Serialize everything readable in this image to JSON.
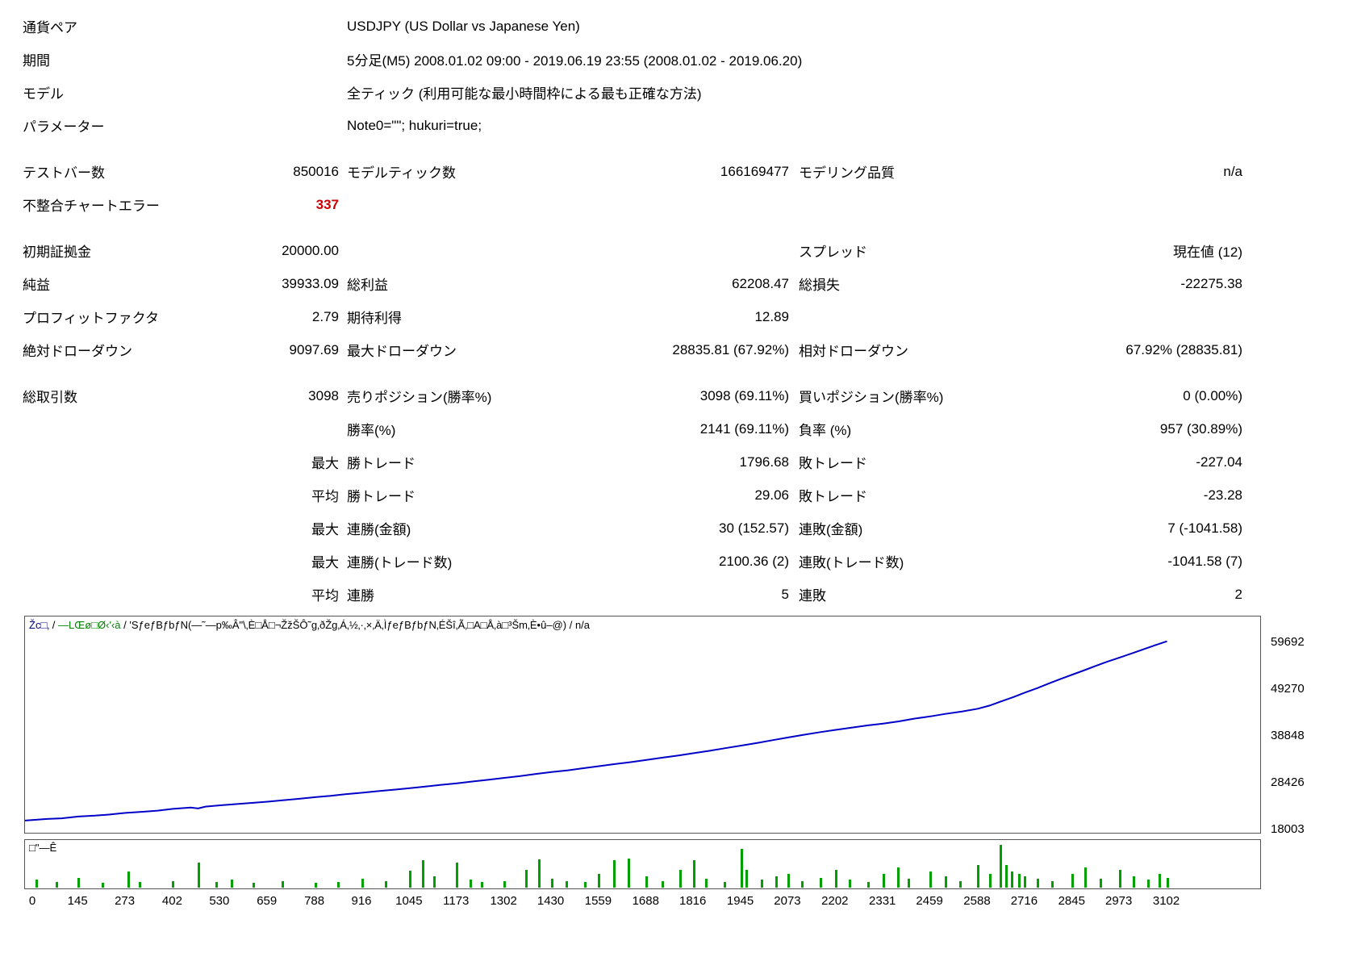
{
  "header": {
    "rows": [
      {
        "label": "通貨ペア",
        "value": "USDJPY (US Dollar vs Japanese Yen)"
      },
      {
        "label": "期間",
        "value": "5分足(M5) 2008.01.02 09:00 - 2019.06.19 23:55 (2008.01.02 - 2019.06.20)"
      },
      {
        "label": "モデル",
        "value": "全ティック (利用可能な最小時間枠による最も正確な方法)"
      },
      {
        "label": "パラメーター",
        "value": "Note0=\"\"; hukuri=true;"
      }
    ]
  },
  "sections": {
    "testing": {
      "rows": [
        {
          "c0": "テストバー数",
          "c1": "850016",
          "c2": "モデルティック数",
          "c3": "166169477",
          "c4": "モデリング品質",
          "c5": "n/a"
        },
        {
          "c0": "不整合チャートエラー",
          "c1": "337",
          "c2": "",
          "c3": "",
          "c4": "",
          "c5": "",
          "styles": {
            "c1": "err"
          }
        }
      ]
    },
    "results": {
      "rows": [
        {
          "c0": "初期証拠金",
          "c1": "20000.00",
          "c2": "",
          "c3": "",
          "c4": "スプレッド",
          "c5": "現在値 (12)"
        },
        {
          "c0": "純益",
          "c1": "39933.09",
          "c2": "総利益",
          "c3": "62208.47",
          "c4": "総損失",
          "c5": "-22275.38"
        },
        {
          "c0": "プロフィットファクタ",
          "c1": "2.79",
          "c2": "期待利得",
          "c3": "12.89",
          "c4": "",
          "c5": ""
        },
        {
          "c0": "絶対ドローダウン",
          "c1": "9097.69",
          "c2": "最大ドローダウン",
          "c3": "28835.81 (67.92%)",
          "c4": "相対ドローダウン",
          "c5": "67.92% (28835.81)"
        }
      ]
    },
    "trades": {
      "rows": [
        {
          "c0": "総取引数",
          "c1": "3098",
          "c2": "売りポジション(勝率%)",
          "c3": "3098 (69.11%)",
          "c4": "買いポジション(勝率%)",
          "c5": "0 (0.00%)"
        },
        {
          "c0": "",
          "c1": "",
          "c2": "勝率(%)",
          "c3": "2141 (69.11%)",
          "c4": "負率 (%)",
          "c5": "957 (30.89%)"
        },
        {
          "c0": "",
          "c1": "最大",
          "c2": "勝トレード",
          "c3": "1796.68",
          "c4": "敗トレード",
          "c5": "-227.04"
        },
        {
          "c0": "",
          "c1": "平均",
          "c2": "勝トレード",
          "c3": "29.06",
          "c4": "敗トレード",
          "c5": "-23.28"
        },
        {
          "c0": "",
          "c1": "最大",
          "c2": "連勝(金額)",
          "c3": "30 (152.57)",
          "c4": "連敗(金額)",
          "c5": "7 (-1041.58)"
        },
        {
          "c0": "",
          "c1": "最大",
          "c2": "連勝(トレード数)",
          "c3": "2100.36 (2)",
          "c4": "連敗(トレード数)",
          "c5": "-1041.58 (7)"
        },
        {
          "c0": "",
          "c1": "平均",
          "c2": "連勝",
          "c3": "5",
          "c4": "連敗",
          "c5": "2"
        }
      ]
    }
  },
  "colors": {
    "error": "#cc0000",
    "balance_line": "#0000c8",
    "balance_label": "#000080",
    "equity_label": "#008000",
    "bars": "#00a000",
    "border": "#555555"
  },
  "chart_data": [
    {
      "type": "line",
      "name": "balance-curve",
      "title_parts": {
        "balance": "Žc□‚",
        "equity": "—LŒø□Ø‹'‹à",
        "model": "'SƒeƒBƒbƒN(—˜—p‰Â\"\\‚È□Å□¬ŽžŠÔ˜g‚ðŽg‚Á‚½‚·‚×‚Ä‚ÌƒeƒBƒbƒN‚ÉŠî‚Ã‚­□A□Å‚à□³Šm‚È•û–@)",
        "quality": "n/a",
        "sep": " / "
      },
      "xlim": [
        0,
        3355
      ],
      "ylim": [
        18003,
        59692
      ],
      "yticks": [
        59692,
        49270,
        38848,
        28426,
        18003
      ],
      "xticks": [
        0,
        145,
        273,
        402,
        530,
        659,
        788,
        916,
        1045,
        1173,
        1302,
        1430,
        1559,
        1688,
        1816,
        1945,
        2073,
        2202,
        2331,
        2459,
        2588,
        2716,
        2845,
        2973,
        3102
      ],
      "grid": false,
      "x": [
        0,
        60,
        100,
        145,
        190,
        230,
        273,
        320,
        360,
        402,
        450,
        470,
        490,
        530,
        580,
        620,
        659,
        700,
        745,
        788,
        830,
        870,
        916,
        960,
        1000,
        1045,
        1090,
        1130,
        1173,
        1215,
        1260,
        1302,
        1345,
        1390,
        1430,
        1475,
        1515,
        1559,
        1600,
        1645,
        1688,
        1730,
        1775,
        1816,
        1860,
        1900,
        1945,
        1990,
        2030,
        2073,
        2115,
        2160,
        2202,
        2245,
        2290,
        2331,
        2375,
        2415,
        2459,
        2500,
        2545,
        2588,
        2620,
        2650,
        2685,
        2716,
        2750,
        2780,
        2812,
        2845,
        2878,
        2910,
        2940,
        2973,
        3005,
        3040,
        3070,
        3102
      ],
      "y": [
        20000,
        20350,
        20500,
        20900,
        21100,
        21350,
        21700,
        21950,
        22200,
        22600,
        22900,
        22700,
        23100,
        23400,
        23700,
        23950,
        24200,
        24500,
        24850,
        25200,
        25500,
        25850,
        26200,
        26550,
        26850,
        27200,
        27600,
        27950,
        28300,
        28700,
        29100,
        29500,
        29900,
        30400,
        30800,
        31200,
        31650,
        32100,
        32550,
        33000,
        33500,
        34000,
        34500,
        35000,
        35550,
        36100,
        36700,
        37300,
        37900,
        38500,
        39100,
        39700,
        40200,
        40700,
        41200,
        41600,
        42100,
        42700,
        43200,
        43750,
        44300,
        44900,
        45600,
        46500,
        47500,
        48500,
        49500,
        50500,
        51500,
        52500,
        53500,
        54500,
        55400,
        56300,
        57200,
        58200,
        59050,
        59933
      ]
    },
    {
      "type": "bar",
      "name": "trade-volume",
      "label": "□\"—Ê",
      "x": [
        30,
        85,
        145,
        210,
        280,
        310,
        402,
        470,
        520,
        560,
        620,
        700,
        788,
        850,
        916,
        980,
        1045,
        1080,
        1110,
        1173,
        1210,
        1240,
        1302,
        1360,
        1395,
        1430,
        1470,
        1520,
        1559,
        1600,
        1640,
        1688,
        1730,
        1780,
        1816,
        1850,
        1900,
        1945,
        1960,
        2000,
        2040,
        2073,
        2110,
        2160,
        2202,
        2240,
        2290,
        2331,
        2370,
        2400,
        2459,
        2500,
        2540,
        2588,
        2620,
        2650,
        2665,
        2680,
        2700,
        2716,
        2750,
        2790,
        2845,
        2880,
        2920,
        2973,
        3010,
        3050,
        3080,
        3102
      ],
      "h": [
        0.18,
        0.12,
        0.22,
        0.1,
        0.35,
        0.12,
        0.15,
        0.55,
        0.12,
        0.18,
        0.1,
        0.14,
        0.1,
        0.12,
        0.2,
        0.15,
        0.38,
        0.6,
        0.25,
        0.55,
        0.18,
        0.12,
        0.15,
        0.4,
        0.62,
        0.2,
        0.15,
        0.12,
        0.3,
        0.6,
        0.65,
        0.25,
        0.15,
        0.4,
        0.6,
        0.2,
        0.12,
        0.85,
        0.4,
        0.18,
        0.25,
        0.3,
        0.15,
        0.22,
        0.4,
        0.18,
        0.12,
        0.3,
        0.45,
        0.2,
        0.35,
        0.25,
        0.15,
        0.5,
        0.3,
        0.95,
        0.5,
        0.35,
        0.3,
        0.25,
        0.2,
        0.15,
        0.3,
        0.45,
        0.2,
        0.4,
        0.25,
        0.18,
        0.3,
        0.22
      ]
    }
  ]
}
